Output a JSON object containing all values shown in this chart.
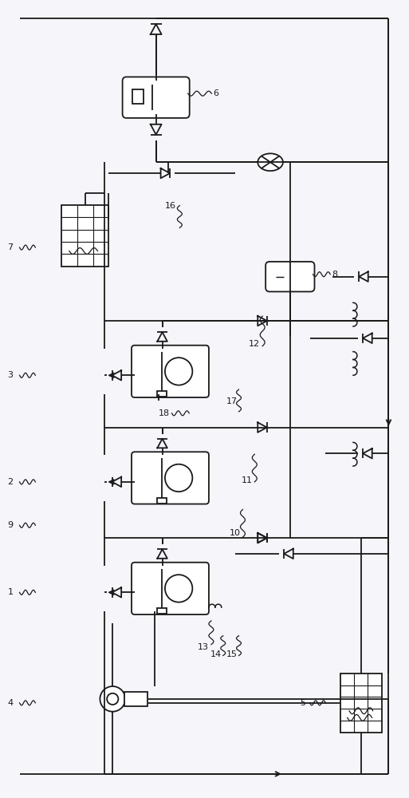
{
  "bg_color": "#f5f5fa",
  "line_color": "#1a1a1a",
  "lw": 1.3,
  "fig_w": 5.13,
  "fig_h": 10.0,
  "dpi": 100
}
